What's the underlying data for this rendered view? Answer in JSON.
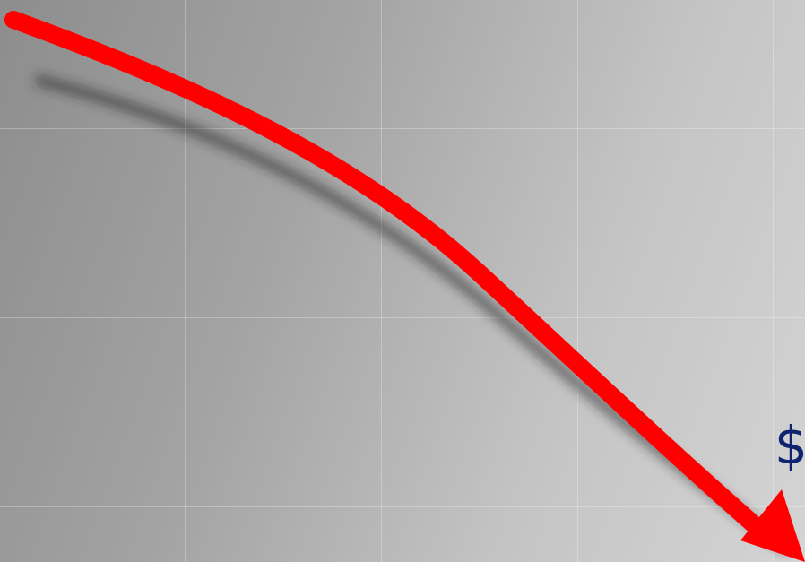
{
  "colors": {
    "arrow": "#ff0000",
    "text": "#101f7a",
    "background_light": "#d4d4d4",
    "background_dark": "#8d8d8d"
  },
  "top_label": "",
  "right_label": "$"
}
